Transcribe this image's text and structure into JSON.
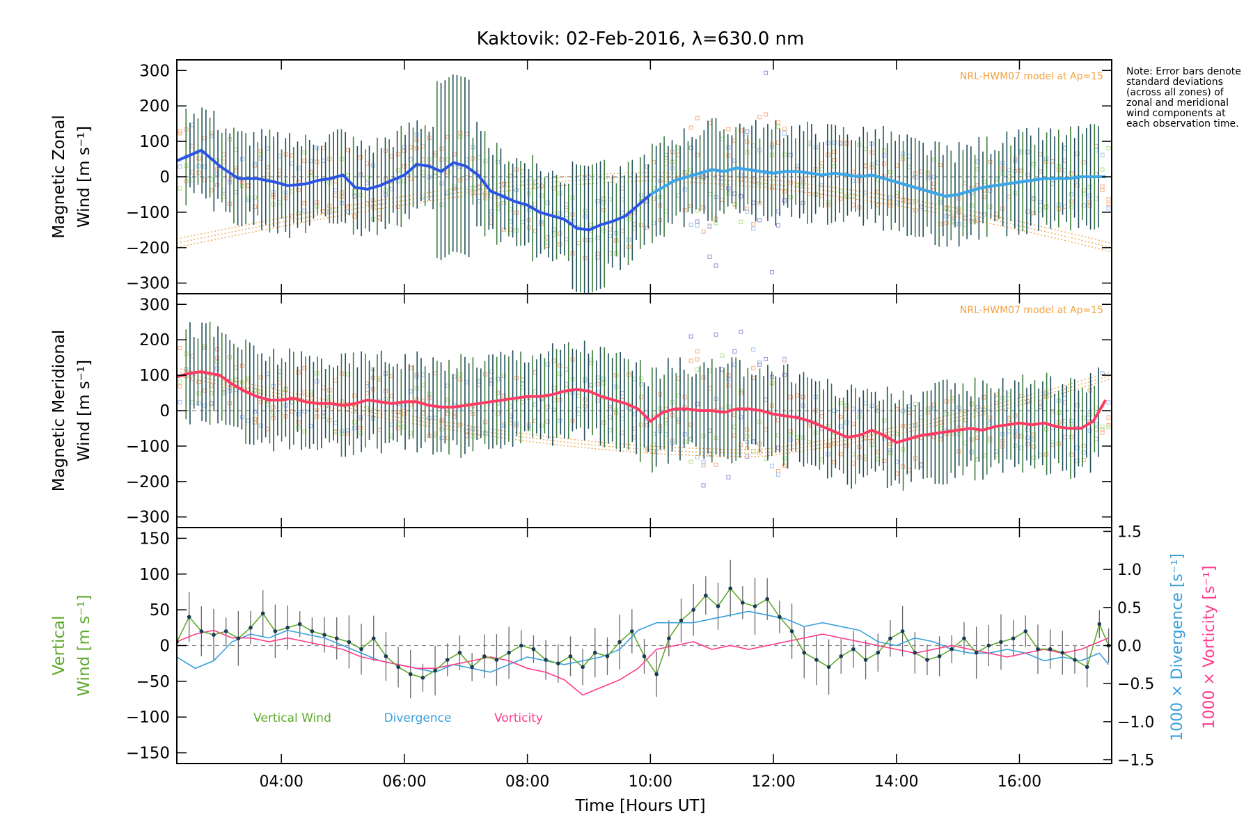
{
  "figure": {
    "title": "Kaktovik: 02-Feb-2016, λ=630.0 nm",
    "note": "Note: Error bars denote standard deviations (across all zones) of zonal and meridional wind components at each observation time.",
    "xlabel": "Time [Hours UT]",
    "x_tick_labels": [
      "04:00",
      "06:00",
      "08:00",
      "10:00",
      "12:00",
      "14:00",
      "16:00"
    ],
    "colors": {
      "zonal": "#2a54e6",
      "meridional": "#ff3a63",
      "vertical": "#5ea92c",
      "divergence": "#3aa0dc",
      "vorticity": "#ff3a8c",
      "model": "#f2a040",
      "errorbar": "#1f4e5a"
    }
  },
  "chart_data": [
    {
      "type": "line",
      "panel": "zonal",
      "ylabel_top": "Magnetic Zonal",
      "ylabel_bottom": "Wind [m s⁻¹]",
      "model_label": "NRL-HWM07 model at Ap=15",
      "xlim": [
        2.3,
        17.5
      ],
      "ylim": [
        -330,
        330
      ],
      "yticks": [
        -300,
        -200,
        -100,
        0,
        100,
        200,
        300
      ],
      "grid": false,
      "series": [
        {
          "x": [
            2.3,
            2.5,
            2.7,
            3.0,
            3.3,
            3.6,
            3.9,
            4.1,
            4.4,
            4.6,
            4.8,
            5.0,
            5.2,
            5.4,
            5.6,
            5.8,
            6.0,
            6.2,
            6.4,
            6.6,
            6.8,
            7.0,
            7.2,
            7.4,
            7.6,
            7.8,
            8.0,
            8.2,
            8.4,
            8.6,
            8.8,
            9.0,
            9.2,
            9.4,
            9.6,
            9.8,
            10.0,
            10.2,
            10.4,
            10.6,
            10.8,
            11.0,
            11.2,
            11.4,
            11.6,
            11.8,
            12.0,
            12.2,
            12.4,
            12.6,
            12.8,
            13.0,
            13.2,
            13.4,
            13.6,
            13.8,
            14.0,
            14.2,
            14.4,
            14.6,
            14.8,
            15.0,
            15.2,
            15.4,
            15.6,
            15.8,
            16.0,
            16.2,
            16.4,
            16.6,
            16.8,
            17.0,
            17.2,
            17.4
          ],
          "values": [
            45,
            60,
            75,
            30,
            -5,
            -5,
            -15,
            -25,
            -20,
            -10,
            -5,
            5,
            -30,
            -35,
            -25,
            -10,
            5,
            35,
            30,
            15,
            40,
            30,
            5,
            -40,
            -55,
            -70,
            -80,
            -100,
            -110,
            -120,
            -145,
            -150,
            -135,
            -125,
            -110,
            -80,
            -50,
            -30,
            -10,
            0,
            10,
            20,
            15,
            25,
            20,
            15,
            10,
            15,
            15,
            10,
            5,
            10,
            5,
            0,
            5,
            -5,
            -15,
            -25,
            -35,
            -45,
            -55,
            -50,
            -40,
            -30,
            -25,
            -20,
            -15,
            -10,
            -5,
            -5,
            -5,
            0,
            0,
            0
          ]
        }
      ]
    },
    {
      "type": "line",
      "panel": "meridional",
      "ylabel_top": "Magnetic Meridional",
      "ylabel_bottom": "Wind [m s⁻¹]",
      "model_label": "NRL-HWM07 model at Ap=15",
      "xlim": [
        2.3,
        17.5
      ],
      "ylim": [
        -330,
        330
      ],
      "yticks": [
        -300,
        -200,
        -100,
        0,
        100,
        200,
        300
      ],
      "grid": false,
      "series": [
        {
          "x": [
            2.3,
            2.5,
            2.7,
            3.0,
            3.2,
            3.4,
            3.6,
            3.8,
            4.0,
            4.2,
            4.4,
            4.6,
            4.8,
            5.0,
            5.2,
            5.4,
            5.6,
            5.8,
            6.0,
            6.2,
            6.4,
            6.6,
            6.8,
            7.0,
            7.2,
            7.4,
            7.6,
            7.8,
            8.0,
            8.2,
            8.4,
            8.6,
            8.8,
            9.0,
            9.2,
            9.4,
            9.6,
            9.8,
            10.0,
            10.2,
            10.4,
            10.6,
            10.8,
            11.0,
            11.2,
            11.4,
            11.6,
            11.8,
            12.0,
            12.2,
            12.4,
            12.6,
            12.8,
            13.0,
            13.2,
            13.4,
            13.6,
            13.8,
            14.0,
            14.2,
            14.4,
            14.6,
            14.8,
            15.0,
            15.2,
            15.4,
            15.6,
            15.8,
            16.0,
            16.2,
            16.4,
            16.6,
            16.8,
            17.0,
            17.2,
            17.4
          ],
          "values": [
            95,
            105,
            110,
            100,
            75,
            55,
            40,
            30,
            30,
            35,
            25,
            20,
            20,
            15,
            20,
            30,
            25,
            20,
            25,
            25,
            15,
            10,
            10,
            15,
            20,
            25,
            30,
            35,
            40,
            40,
            45,
            55,
            60,
            55,
            40,
            30,
            20,
            5,
            -30,
            -5,
            5,
            5,
            0,
            0,
            -5,
            5,
            5,
            0,
            -10,
            -15,
            -20,
            -30,
            -45,
            -60,
            -75,
            -70,
            -55,
            -70,
            -90,
            -80,
            -70,
            -65,
            -60,
            -55,
            -50,
            -55,
            -45,
            -40,
            -35,
            -40,
            -35,
            -45,
            -50,
            -50,
            -30,
            30
          ]
        }
      ]
    },
    {
      "type": "line",
      "panel": "vertical",
      "ylabel_top": "Vertical",
      "ylabel_bottom": "Wind [m s⁻¹]",
      "ylabel_right_divergence": "1000 × Divergence [s⁻¹]",
      "ylabel_right_vorticity": "1000 × Vorticity [s⁻¹]",
      "xlim": [
        2.3,
        17.5
      ],
      "ylim": [
        -165,
        165
      ],
      "yticks": [
        -150,
        -100,
        -50,
        0,
        50,
        100,
        150
      ],
      "y2lim": [
        -1.55,
        1.55
      ],
      "y2ticks": [
        -1.5,
        -1.0,
        -0.5,
        0.0,
        0.5,
        1.0,
        1.5
      ],
      "y2tick_labels": [
        "−1.5",
        "−1.0",
        "−0.5",
        "0.0",
        "0.5",
        "1.0",
        "1.5"
      ],
      "legend_placement": "bottom-left",
      "legend_labels": [
        "Vertical Wind",
        "Divergence",
        "Vorticity"
      ],
      "grid": false,
      "series": [
        {
          "axis": "left",
          "x": [
            2.3,
            2.5,
            2.7,
            2.9,
            3.1,
            3.3,
            3.5,
            3.7,
            3.9,
            4.1,
            4.3,
            4.5,
            4.7,
            4.9,
            5.1,
            5.3,
            5.5,
            5.7,
            5.9,
            6.1,
            6.3,
            6.5,
            6.7,
            6.9,
            7.1,
            7.3,
            7.5,
            7.7,
            7.9,
            8.1,
            8.3,
            8.5,
            8.7,
            8.9,
            9.1,
            9.3,
            9.5,
            9.7,
            9.9,
            10.1,
            10.3,
            10.5,
            10.7,
            10.9,
            11.1,
            11.3,
            11.5,
            11.7,
            11.9,
            12.1,
            12.3,
            12.5,
            12.7,
            12.9,
            13.1,
            13.3,
            13.5,
            13.7,
            13.9,
            14.1,
            14.3,
            14.5,
            14.7,
            14.9,
            15.1,
            15.3,
            15.5,
            15.7,
            15.9,
            16.1,
            16.3,
            16.5,
            16.7,
            16.9,
            17.1,
            17.3,
            17.45
          ],
          "values": [
            5,
            40,
            20,
            15,
            20,
            10,
            25,
            45,
            20,
            25,
            30,
            20,
            15,
            10,
            5,
            -5,
            10,
            -15,
            -30,
            -40,
            -45,
            -35,
            -20,
            -10,
            -30,
            -15,
            -20,
            -10,
            0,
            -5,
            -20,
            -25,
            -15,
            -30,
            -10,
            -15,
            5,
            20,
            -15,
            -40,
            10,
            35,
            50,
            70,
            55,
            80,
            60,
            55,
            65,
            40,
            20,
            -10,
            -20,
            -30,
            -15,
            -5,
            -20,
            -10,
            10,
            20,
            -10,
            -20,
            -15,
            -5,
            10,
            -10,
            0,
            5,
            10,
            20,
            -5,
            -5,
            -10,
            -20,
            -30,
            30,
            0
          ]
        },
        {
          "axis": "right",
          "x": [
            2.3,
            2.6,
            2.9,
            3.2,
            3.5,
            3.8,
            4.1,
            4.4,
            4.7,
            5.0,
            5.3,
            5.6,
            5.9,
            6.2,
            6.5,
            6.8,
            7.1,
            7.4,
            7.7,
            8.0,
            8.3,
            8.6,
            8.9,
            9.2,
            9.5,
            9.8,
            10.1,
            10.4,
            10.7,
            11.0,
            11.3,
            11.6,
            11.9,
            12.2,
            12.5,
            12.8,
            13.1,
            13.4,
            13.7,
            14.0,
            14.3,
            14.6,
            14.9,
            15.2,
            15.5,
            15.8,
            16.1,
            16.4,
            16.7,
            17.0,
            17.3,
            17.45
          ],
          "values": [
            -0.15,
            -0.3,
            -0.2,
            0.05,
            0.15,
            0.1,
            0.2,
            0.15,
            0.1,
            0.0,
            -0.1,
            -0.2,
            -0.25,
            -0.3,
            -0.35,
            -0.25,
            -0.3,
            -0.35,
            -0.25,
            -0.15,
            -0.2,
            -0.25,
            -0.2,
            -0.15,
            -0.05,
            0.2,
            0.3,
            0.3,
            0.3,
            0.35,
            0.4,
            0.45,
            0.4,
            0.35,
            0.25,
            0.3,
            0.25,
            0.2,
            0.05,
            0.0,
            0.1,
            0.05,
            -0.05,
            -0.1,
            -0.1,
            -0.05,
            -0.1,
            -0.2,
            -0.15,
            -0.2,
            -0.1,
            -0.25
          ]
        },
        {
          "axis": "right",
          "x": [
            2.3,
            2.6,
            2.9,
            3.2,
            3.5,
            3.8,
            4.1,
            4.4,
            4.7,
            5.0,
            5.3,
            5.6,
            5.9,
            6.2,
            6.5,
            6.8,
            7.1,
            7.4,
            7.7,
            8.0,
            8.3,
            8.6,
            8.9,
            9.2,
            9.5,
            9.8,
            10.1,
            10.4,
            10.7,
            11.0,
            11.3,
            11.6,
            11.9,
            12.2,
            12.5,
            12.8,
            13.1,
            13.4,
            13.7,
            14.0,
            14.3,
            14.6,
            14.9,
            15.2,
            15.5,
            15.8,
            16.1,
            16.4,
            16.7,
            17.0,
            17.3,
            17.45
          ],
          "values": [
            0.05,
            0.15,
            0.2,
            0.1,
            0.1,
            0.05,
            0.1,
            0.05,
            0.0,
            -0.05,
            -0.15,
            -0.2,
            -0.25,
            -0.3,
            -0.3,
            -0.25,
            -0.2,
            -0.15,
            -0.2,
            -0.3,
            -0.35,
            -0.45,
            -0.65,
            -0.55,
            -0.45,
            -0.3,
            -0.05,
            0.0,
            0.05,
            -0.05,
            0.0,
            -0.05,
            0.0,
            0.05,
            0.1,
            0.15,
            0.1,
            0.05,
            0.0,
            -0.05,
            -0.1,
            -0.05,
            0.0,
            -0.05,
            -0.1,
            -0.15,
            -0.1,
            -0.05,
            -0.1,
            -0.05,
            0.05,
            0.1
          ]
        }
      ]
    }
  ]
}
